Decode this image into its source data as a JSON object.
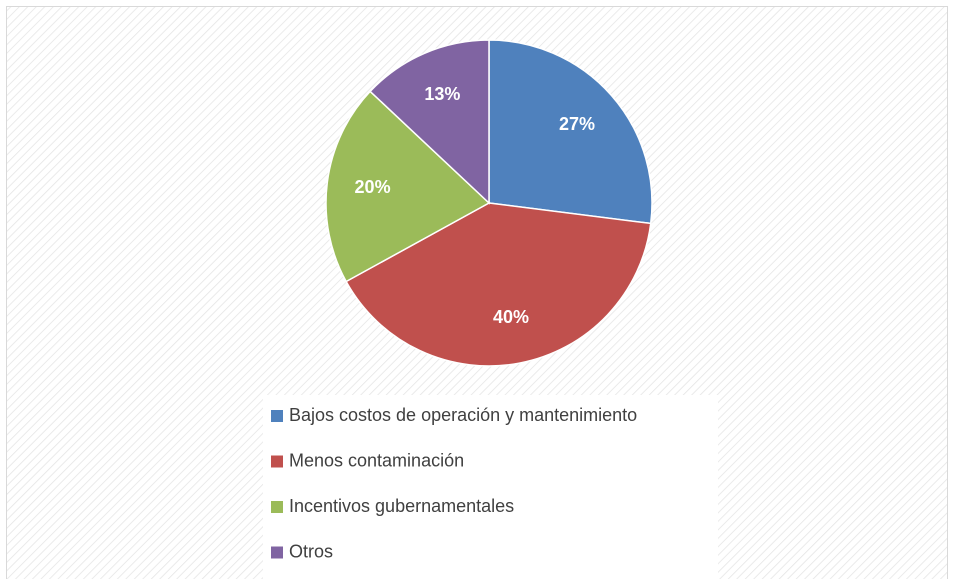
{
  "chart_data": {
    "type": "pie",
    "categories": [
      "Bajos costos de operación y mantenimiento",
      "Menos contaminación",
      "Incentivos gubernamentales",
      "Otros"
    ],
    "values": [
      27,
      40,
      20,
      13
    ],
    "value_labels": [
      "27%",
      "40%",
      "20%",
      "13%"
    ],
    "colors": [
      "#4f81bd",
      "#c0504d",
      "#9bbb59",
      "#8064a2"
    ],
    "legend": "bottom"
  }
}
